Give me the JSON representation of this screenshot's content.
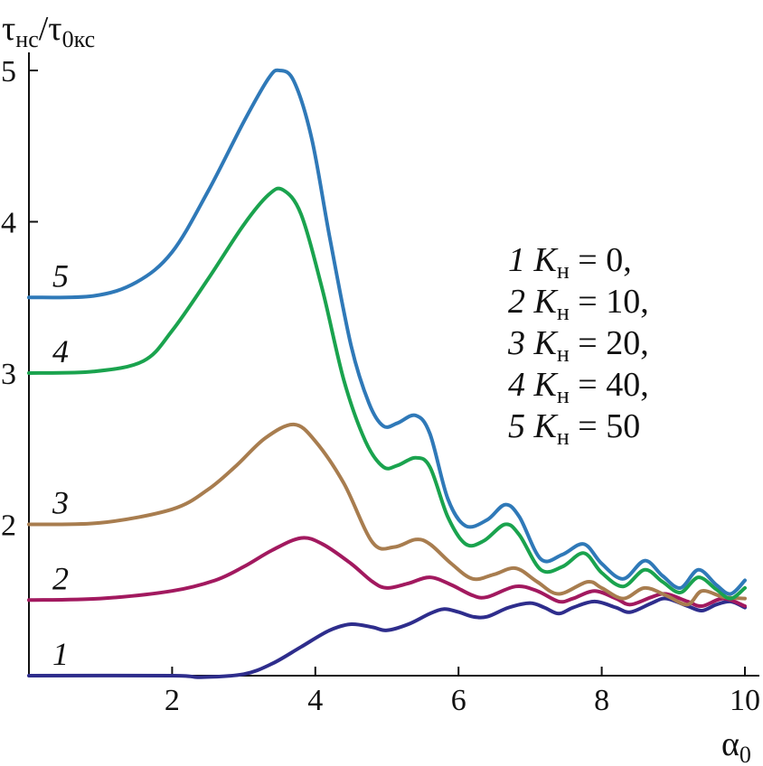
{
  "chart_data": {
    "type": "line",
    "ylabel": "τнс/τ0кс",
    "xlabel": "α0",
    "xlim": [
      0,
      10
    ],
    "ylim": [
      1,
      5
    ],
    "xticks": [
      2,
      4,
      6,
      8,
      10
    ],
    "yticks": [
      2,
      3,
      4,
      5
    ],
    "grid": false,
    "legend": {
      "placement": "right",
      "entries": [
        {
          "num": "1",
          "sym": "K",
          "sub": "н",
          "rest": " = 0,"
        },
        {
          "num": "2",
          "sym": "K",
          "sub": "н",
          "rest": " = 10,"
        },
        {
          "num": "3",
          "sym": "K",
          "sub": "н",
          "rest": " = 20,"
        },
        {
          "num": "4",
          "sym": "K",
          "sub": "н",
          "rest": " = 40,"
        },
        {
          "num": "5",
          "sym": "K",
          "sub": "н",
          "rest": " = 50"
        }
      ]
    },
    "series": [
      {
        "name": "1",
        "color": "#2e2d8c",
        "points": [
          [
            0,
            1.0
          ],
          [
            2.0,
            1.0
          ],
          [
            2.4,
            0.99
          ],
          [
            3.0,
            1.01
          ],
          [
            3.4,
            1.08
          ],
          [
            3.8,
            1.19
          ],
          [
            4.2,
            1.3
          ],
          [
            4.5,
            1.34
          ],
          [
            4.8,
            1.32
          ],
          [
            5.0,
            1.3
          ],
          [
            5.3,
            1.34
          ],
          [
            5.6,
            1.41
          ],
          [
            5.8,
            1.44
          ],
          [
            6.0,
            1.42
          ],
          [
            6.2,
            1.39
          ],
          [
            6.4,
            1.39
          ],
          [
            6.7,
            1.45
          ],
          [
            7.0,
            1.48
          ],
          [
            7.2,
            1.45
          ],
          [
            7.4,
            1.41
          ],
          [
            7.6,
            1.45
          ],
          [
            7.9,
            1.49
          ],
          [
            8.2,
            1.45
          ],
          [
            8.4,
            1.42
          ],
          [
            8.7,
            1.48
          ],
          [
            8.9,
            1.51
          ],
          [
            9.2,
            1.46
          ],
          [
            9.4,
            1.43
          ],
          [
            9.6,
            1.47
          ],
          [
            9.8,
            1.49
          ],
          [
            10.0,
            1.45
          ]
        ]
      },
      {
        "name": "2",
        "color": "#a2195f",
        "points": [
          [
            0,
            1.5
          ],
          [
            1.0,
            1.51
          ],
          [
            2.0,
            1.56
          ],
          [
            2.6,
            1.63
          ],
          [
            3.0,
            1.72
          ],
          [
            3.4,
            1.83
          ],
          [
            3.8,
            1.91
          ],
          [
            4.1,
            1.87
          ],
          [
            4.5,
            1.74
          ],
          [
            4.8,
            1.62
          ],
          [
            5.0,
            1.58
          ],
          [
            5.3,
            1.61
          ],
          [
            5.6,
            1.65
          ],
          [
            5.9,
            1.6
          ],
          [
            6.2,
            1.53
          ],
          [
            6.4,
            1.52
          ],
          [
            6.8,
            1.59
          ],
          [
            7.1,
            1.56
          ],
          [
            7.4,
            1.49
          ],
          [
            7.6,
            1.51
          ],
          [
            7.9,
            1.56
          ],
          [
            8.2,
            1.51
          ],
          [
            8.4,
            1.47
          ],
          [
            8.7,
            1.52
          ],
          [
            8.9,
            1.54
          ],
          [
            9.2,
            1.49
          ],
          [
            9.4,
            1.46
          ],
          [
            9.7,
            1.51
          ],
          [
            10.0,
            1.46
          ]
        ]
      },
      {
        "name": "3",
        "color": "#a87d4f",
        "points": [
          [
            0,
            2.0
          ],
          [
            1.0,
            2.01
          ],
          [
            2.0,
            2.1
          ],
          [
            2.5,
            2.23
          ],
          [
            2.9,
            2.39
          ],
          [
            3.3,
            2.57
          ],
          [
            3.7,
            2.66
          ],
          [
            4.0,
            2.55
          ],
          [
            4.4,
            2.27
          ],
          [
            4.8,
            1.88
          ],
          [
            5.1,
            1.85
          ],
          [
            5.4,
            1.9
          ],
          [
            5.6,
            1.87
          ],
          [
            5.9,
            1.74
          ],
          [
            6.2,
            1.64
          ],
          [
            6.5,
            1.67
          ],
          [
            6.8,
            1.71
          ],
          [
            7.1,
            1.62
          ],
          [
            7.4,
            1.54
          ],
          [
            7.8,
            1.62
          ],
          [
            8.0,
            1.58
          ],
          [
            8.3,
            1.51
          ],
          [
            8.6,
            1.58
          ],
          [
            8.9,
            1.53
          ],
          [
            9.2,
            1.47
          ],
          [
            9.4,
            1.56
          ],
          [
            9.7,
            1.52
          ],
          [
            10.0,
            1.51
          ]
        ]
      },
      {
        "name": "4",
        "color": "#1aa34e",
        "points": [
          [
            0,
            3.0
          ],
          [
            0.9,
            3.01
          ],
          [
            1.6,
            3.08
          ],
          [
            2.0,
            3.28
          ],
          [
            2.5,
            3.62
          ],
          [
            3.0,
            3.98
          ],
          [
            3.35,
            4.18
          ],
          [
            3.55,
            4.21
          ],
          [
            3.8,
            4.05
          ],
          [
            4.1,
            3.55
          ],
          [
            4.4,
            2.95
          ],
          [
            4.7,
            2.55
          ],
          [
            4.95,
            2.38
          ],
          [
            5.15,
            2.39
          ],
          [
            5.4,
            2.44
          ],
          [
            5.6,
            2.38
          ],
          [
            5.85,
            2.05
          ],
          [
            6.1,
            1.87
          ],
          [
            6.35,
            1.89
          ],
          [
            6.65,
            2.0
          ],
          [
            6.85,
            1.93
          ],
          [
            7.15,
            1.7
          ],
          [
            7.45,
            1.72
          ],
          [
            7.75,
            1.81
          ],
          [
            8.0,
            1.68
          ],
          [
            8.3,
            1.59
          ],
          [
            8.6,
            1.7
          ],
          [
            8.85,
            1.62
          ],
          [
            9.1,
            1.55
          ],
          [
            9.35,
            1.65
          ],
          [
            9.6,
            1.57
          ],
          [
            9.8,
            1.51
          ],
          [
            10.0,
            1.58
          ]
        ]
      },
      {
        "name": "5",
        "color": "#2f79b8",
        "points": [
          [
            0,
            3.5
          ],
          [
            0.9,
            3.51
          ],
          [
            1.5,
            3.6
          ],
          [
            2.0,
            3.8
          ],
          [
            2.5,
            4.2
          ],
          [
            3.0,
            4.66
          ],
          [
            3.35,
            4.95
          ],
          [
            3.5,
            5.0
          ],
          [
            3.7,
            4.93
          ],
          [
            3.95,
            4.55
          ],
          [
            4.2,
            3.9
          ],
          [
            4.5,
            3.18
          ],
          [
            4.75,
            2.8
          ],
          [
            4.95,
            2.65
          ],
          [
            5.15,
            2.67
          ],
          [
            5.4,
            2.72
          ],
          [
            5.6,
            2.6
          ],
          [
            5.85,
            2.17
          ],
          [
            6.1,
            1.99
          ],
          [
            6.4,
            2.03
          ],
          [
            6.65,
            2.13
          ],
          [
            6.85,
            2.05
          ],
          [
            7.15,
            1.77
          ],
          [
            7.45,
            1.8
          ],
          [
            7.75,
            1.87
          ],
          [
            8.0,
            1.74
          ],
          [
            8.3,
            1.64
          ],
          [
            8.6,
            1.76
          ],
          [
            8.85,
            1.66
          ],
          [
            9.1,
            1.58
          ],
          [
            9.35,
            1.7
          ],
          [
            9.6,
            1.6
          ],
          [
            9.8,
            1.54
          ],
          [
            10.0,
            1.63
          ]
        ]
      }
    ]
  }
}
